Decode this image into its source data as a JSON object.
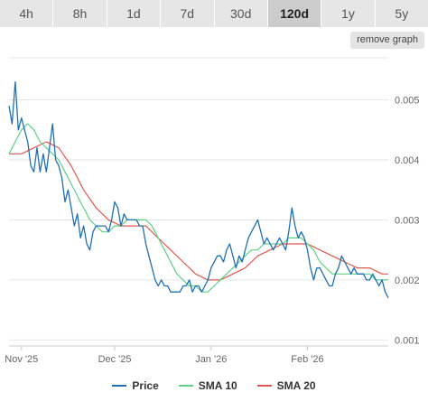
{
  "tabs": [
    {
      "label": "4h",
      "active": false
    },
    {
      "label": "8h",
      "active": false
    },
    {
      "label": "1d",
      "active": false
    },
    {
      "label": "7d",
      "active": false
    },
    {
      "label": "30d",
      "active": false
    },
    {
      "label": "120d",
      "active": true
    },
    {
      "label": "1y",
      "active": false
    },
    {
      "label": "5y",
      "active": false
    }
  ],
  "remove_graph_label": "remove graph",
  "legend": [
    {
      "label": "Price",
      "color": "#1f6fb4"
    },
    {
      "label": "SMA 10",
      "color": "#5ed08a"
    },
    {
      "label": "SMA 20",
      "color": "#e05a4e"
    }
  ],
  "chart_data": {
    "type": "line",
    "x_ticks": [
      "Nov '25",
      "Dec '25",
      "Jan '26",
      "Feb '26"
    ],
    "x_tick_days": [
      4,
      34,
      65,
      96
    ],
    "xlim": [
      0,
      122
    ],
    "y_ticks": [
      "0.001",
      "0.002",
      "0.003",
      "0.004",
      "0.005"
    ],
    "y_tick_values": [
      0.001,
      0.002,
      0.003,
      0.004,
      0.005
    ],
    "ylim": [
      0.0009,
      0.0057
    ],
    "grid": true,
    "legend_position": "bottom",
    "series": [
      {
        "name": "Price",
        "color": "#1f6fb4",
        "x": [
          0,
          1,
          2,
          3,
          4,
          5,
          6,
          7,
          8,
          9,
          10,
          11,
          12,
          13,
          14,
          15,
          16,
          17,
          18,
          19,
          20,
          21,
          22,
          23,
          24,
          25,
          26,
          27,
          28,
          29,
          30,
          31,
          32,
          33,
          34,
          35,
          36,
          37,
          38,
          39,
          40,
          41,
          42,
          43,
          44,
          45,
          46,
          47,
          48,
          49,
          50,
          51,
          52,
          53,
          54,
          55,
          56,
          57,
          58,
          59,
          60,
          61,
          62,
          63,
          64,
          65,
          66,
          67,
          68,
          69,
          70,
          71,
          72,
          73,
          74,
          75,
          76,
          77,
          78,
          79,
          80,
          81,
          82,
          83,
          84,
          85,
          86,
          87,
          88,
          89,
          90,
          91,
          92,
          93,
          94,
          95,
          96,
          97,
          98,
          99,
          100,
          101,
          102,
          103,
          104,
          105,
          106,
          107,
          108,
          109,
          110,
          111,
          112,
          113,
          114,
          115,
          116,
          117,
          118,
          119,
          120,
          121,
          122
        ],
        "values": [
          0.0049,
          0.0046,
          0.0053,
          0.0045,
          0.0047,
          0.0045,
          0.0043,
          0.0039,
          0.0038,
          0.0042,
          0.0038,
          0.0041,
          0.0038,
          0.0042,
          0.0046,
          0.004,
          0.0039,
          0.0037,
          0.0033,
          0.0035,
          0.0032,
          0.0029,
          0.0031,
          0.0027,
          0.0029,
          0.0026,
          0.0025,
          0.0028,
          0.0029,
          0.0029,
          0.0029,
          0.0029,
          0.0028,
          0.003,
          0.0033,
          0.0032,
          0.0029,
          0.0031,
          0.003,
          0.003,
          0.003,
          0.003,
          0.0029,
          0.0029,
          0.0026,
          0.0024,
          0.0022,
          0.002,
          0.0019,
          0.002,
          0.0019,
          0.0019,
          0.0018,
          0.0018,
          0.0018,
          0.0018,
          0.0019,
          0.0019,
          0.002,
          0.0018,
          0.0019,
          0.0019,
          0.0018,
          0.0019,
          0.002,
          0.0022,
          0.0023,
          0.0024,
          0.0024,
          0.0023,
          0.0025,
          0.0026,
          0.0024,
          0.0022,
          0.0024,
          0.0023,
          0.0025,
          0.0027,
          0.0028,
          0.0029,
          0.003,
          0.0028,
          0.0026,
          0.0027,
          0.0026,
          0.0025,
          0.0026,
          0.0027,
          0.0026,
          0.0025,
          0.0028,
          0.0032,
          0.0029,
          0.0027,
          0.0028,
          0.0027,
          0.0025,
          0.0022,
          0.002,
          0.0022,
          0.0022,
          0.0021,
          0.002,
          0.0019,
          0.0019,
          0.0021,
          0.0022,
          0.0024,
          0.0023,
          0.0022,
          0.0021,
          0.0022,
          0.0021,
          0.0021,
          0.0021,
          0.002,
          0.002,
          0.0021,
          0.002,
          0.0019,
          0.002,
          0.0018,
          0.0017
        ],
        "stroke_width": 1.3
      },
      {
        "name": "SMA 10",
        "color": "#5ed08a",
        "x": [
          0,
          2,
          4,
          6,
          8,
          10,
          12,
          14,
          16,
          18,
          20,
          22,
          24,
          26,
          28,
          30,
          32,
          34,
          36,
          38,
          40,
          42,
          44,
          46,
          48,
          50,
          52,
          54,
          56,
          58,
          60,
          62,
          64,
          66,
          68,
          70,
          72,
          74,
          76,
          78,
          80,
          82,
          84,
          86,
          88,
          90,
          92,
          94,
          96,
          98,
          100,
          102,
          104,
          106,
          108,
          110,
          112,
          114,
          116,
          118,
          120,
          122
        ],
        "values": [
          0.0041,
          0.0043,
          0.0045,
          0.0046,
          0.0045,
          0.0043,
          0.0042,
          0.0041,
          0.004,
          0.0038,
          0.0036,
          0.0034,
          0.0032,
          0.003,
          0.0029,
          0.0028,
          0.0028,
          0.0029,
          0.0029,
          0.003,
          0.003,
          0.003,
          0.003,
          0.0029,
          0.0027,
          0.0025,
          0.0023,
          0.0021,
          0.002,
          0.0019,
          0.0019,
          0.0018,
          0.0018,
          0.0019,
          0.002,
          0.0021,
          0.0022,
          0.0023,
          0.0024,
          0.0025,
          0.0025,
          0.0026,
          0.0026,
          0.0026,
          0.0026,
          0.0027,
          0.0027,
          0.0027,
          0.0026,
          0.0025,
          0.0023,
          0.0022,
          0.0021,
          0.0021,
          0.0021,
          0.0021,
          0.0021,
          0.0021,
          0.0021,
          0.002,
          0.002,
          0.002
        ],
        "stroke_width": 1.2
      },
      {
        "name": "SMA 20",
        "color": "#e05a4e",
        "x": [
          0,
          4,
          8,
          12,
          16,
          20,
          24,
          28,
          32,
          36,
          40,
          44,
          48,
          52,
          56,
          60,
          64,
          68,
          72,
          76,
          80,
          84,
          88,
          92,
          96,
          100,
          104,
          108,
          112,
          116,
          120,
          122
        ],
        "values": [
          0.0041,
          0.0041,
          0.0042,
          0.0043,
          0.0042,
          0.0039,
          0.0035,
          0.0032,
          0.003,
          0.0029,
          0.0029,
          0.0029,
          0.0027,
          0.0025,
          0.0023,
          0.0021,
          0.002,
          0.002,
          0.0021,
          0.0022,
          0.0024,
          0.0025,
          0.0026,
          0.0026,
          0.0026,
          0.0025,
          0.0024,
          0.0023,
          0.0022,
          0.0022,
          0.0021,
          0.0021
        ],
        "stroke_width": 1.2
      }
    ]
  }
}
